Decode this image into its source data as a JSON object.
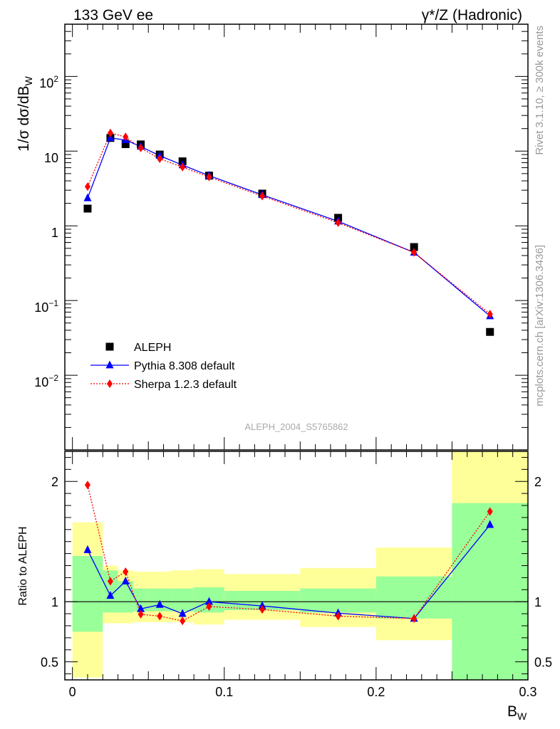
{
  "header": {
    "left": "133 GeV ee",
    "right": "γ*/Z (Hadronic)"
  },
  "side_labels": {
    "rivet": "Rivet 3.1.10, ≥ 300k events",
    "mcplots": "mcplots.cern.ch [arXiv:1306.3436]"
  },
  "watermark": "ALEPH_2004_S5765862",
  "chart_data": [
    {
      "type": "scatter",
      "panel": "main",
      "ylabel": "1/σ dσ/dB_W",
      "yscale": "log",
      "ylim": [
        0.001,
        500
      ],
      "xlim": [
        -0.005,
        0.3
      ],
      "yticks": [
        "10^-2",
        "10^-1",
        "1",
        "10",
        "10^2"
      ],
      "legend_position": "lower-left",
      "series": [
        {
          "name": "ALEPH",
          "style": "black squares",
          "color": "#000000",
          "x": [
            0.01,
            0.025,
            0.035,
            0.045,
            0.0575,
            0.0725,
            0.09,
            0.125,
            0.175,
            0.225,
            0.275
          ],
          "y": [
            1.7,
            15.0,
            12.4,
            12.3,
            9.0,
            7.3,
            4.7,
            2.7,
            1.28,
            0.52,
            0.038
          ]
        },
        {
          "name": "Pythia 8.308 default",
          "style": "solid line, triangles",
          "color": "#0000ff",
          "x": [
            0.01,
            0.025,
            0.035,
            0.045,
            0.0575,
            0.0725,
            0.09,
            0.125,
            0.175,
            0.225,
            0.275
          ],
          "y": [
            2.35,
            15.0,
            14.1,
            11.5,
            8.7,
            6.5,
            4.7,
            2.6,
            1.15,
            0.44,
            0.062
          ]
        },
        {
          "name": "Sherpa 1.2.3 default",
          "style": "dotted line, diamonds",
          "color": "#ff0000",
          "x": [
            0.01,
            0.025,
            0.035,
            0.045,
            0.0575,
            0.0725,
            0.09,
            0.125,
            0.175,
            0.225,
            0.275
          ],
          "y": [
            3.35,
            17.5,
            15.5,
            11.0,
            7.9,
            6.1,
            4.5,
            2.5,
            1.1,
            0.44,
            0.066
          ]
        }
      ]
    },
    {
      "type": "line",
      "panel": "ratio",
      "ylabel": "Ratio to ALEPH",
      "xlabel": "B_W",
      "ylim": [
        0.35,
        2.25
      ],
      "xlim": [
        -0.005,
        0.3
      ],
      "yticks": [
        "0.5",
        "1",
        "2"
      ],
      "xticks": [
        "0",
        "0.1",
        "0.2",
        "0.3"
      ],
      "reference_line": 1,
      "uncertainty_bands": [
        {
          "x0": 0.0,
          "x1": 0.02,
          "inner": [
            0.75,
            1.38
          ],
          "outer": [
            0.37,
            1.66
          ]
        },
        {
          "x0": 0.02,
          "x1": 0.03,
          "inner": [
            0.91,
            1.26
          ],
          "outer": [
            0.82,
            1.3
          ]
        },
        {
          "x0": 0.03,
          "x1": 0.04,
          "inner": [
            0.91,
            1.17
          ],
          "outer": [
            0.82,
            1.26
          ]
        },
        {
          "x0": 0.04,
          "x1": 0.05,
          "inner": [
            0.92,
            1.11
          ],
          "outer": [
            0.83,
            1.25
          ]
        },
        {
          "x0": 0.05,
          "x1": 0.065,
          "inner": [
            0.92,
            1.11
          ],
          "outer": [
            0.83,
            1.25
          ]
        },
        {
          "x0": 0.065,
          "x1": 0.08,
          "inner": [
            0.92,
            1.11
          ],
          "outer": [
            0.83,
            1.26
          ]
        },
        {
          "x0": 0.08,
          "x1": 0.1,
          "inner": [
            0.91,
            1.12
          ],
          "outer": [
            0.81,
            1.27
          ]
        },
        {
          "x0": 0.1,
          "x1": 0.15,
          "inner": [
            0.93,
            1.09
          ],
          "outer": [
            0.85,
            1.23
          ]
        },
        {
          "x0": 0.15,
          "x1": 0.2,
          "inner": [
            0.91,
            1.11
          ],
          "outer": [
            0.79,
            1.28
          ]
        },
        {
          "x0": 0.2,
          "x1": 0.25,
          "inner": [
            0.86,
            1.21
          ],
          "outer": [
            0.68,
            1.45
          ]
        },
        {
          "x0": 0.25,
          "x1": 0.3,
          "inner": [
            0.35,
            1.82
          ],
          "outer": [
            0.35,
            2.25
          ]
        }
      ],
      "band_colors": {
        "inner": "#99ff99",
        "outer": "#ffff99"
      },
      "series": [
        {
          "name": "Pythia 8.308 default",
          "color": "#0000ff",
          "x": [
            0.01,
            0.025,
            0.035,
            0.045,
            0.0575,
            0.0725,
            0.09,
            0.125,
            0.175,
            0.225,
            0.275
          ],
          "y": [
            1.43,
            1.05,
            1.17,
            0.94,
            0.975,
            0.9,
            1.0,
            0.965,
            0.905,
            0.86,
            1.64
          ]
        },
        {
          "name": "Sherpa 1.2.3 default",
          "color": "#ff0000",
          "x": [
            0.01,
            0.025,
            0.035,
            0.045,
            0.0575,
            0.0725,
            0.09,
            0.125,
            0.175,
            0.225,
            0.275
          ],
          "y": [
            1.97,
            1.17,
            1.25,
            0.895,
            0.88,
            0.84,
            0.96,
            0.935,
            0.88,
            0.86,
            1.75
          ]
        }
      ]
    }
  ]
}
